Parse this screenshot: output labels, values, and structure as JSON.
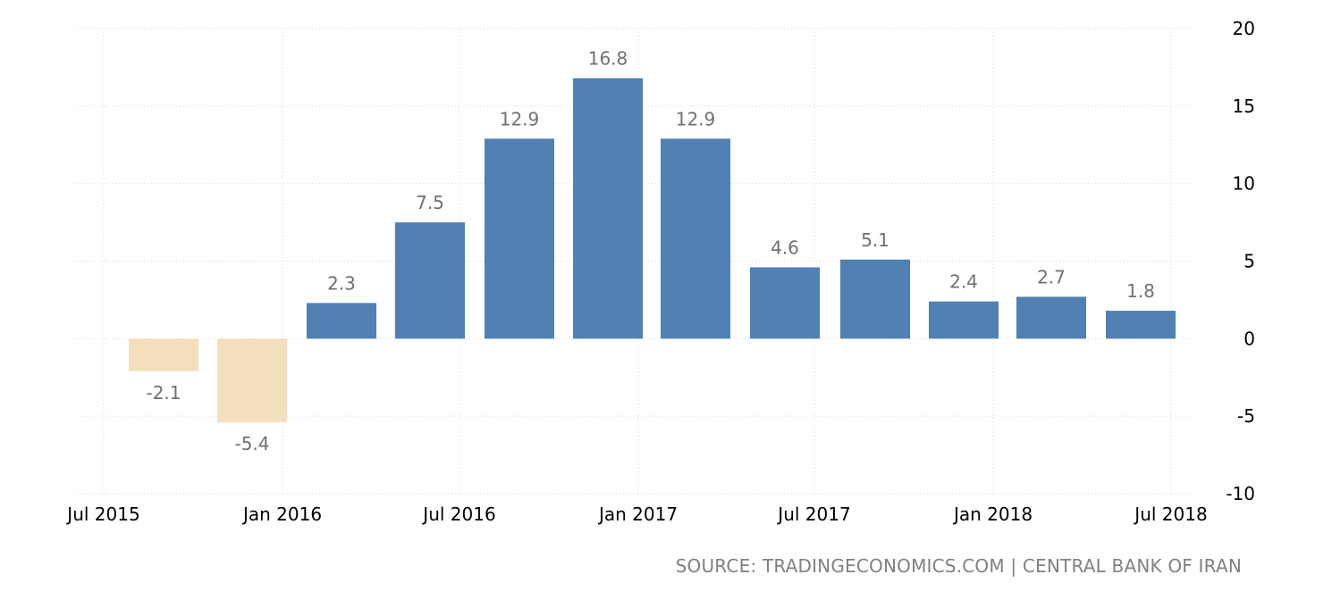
{
  "chart_data": {
    "type": "bar",
    "categories": [
      "Sep 2015",
      "Dec 2015",
      "Mar 2016",
      "Jun 2016",
      "Sep 2016",
      "Dec 2016",
      "Mar 2017",
      "Jun 2017",
      "Sep 2017",
      "Dec 2017",
      "Mar 2018",
      "Jun 2018"
    ],
    "values": [
      -2.1,
      -5.4,
      2.3,
      7.5,
      12.9,
      16.8,
      12.9,
      4.6,
      5.1,
      2.4,
      2.7,
      1.8
    ],
    "value_labels": [
      "-2.1",
      "-5.4",
      "2.3",
      "7.5",
      "12.9",
      "16.8",
      "12.9",
      "4.6",
      "5.1",
      "2.4",
      "2.7",
      "1.8"
    ],
    "x_ticks": [
      "Jul 2015",
      "Jan 2016",
      "Jul 2016",
      "Jan 2017",
      "Jul 2017",
      "Jan 2018",
      "Jul 2018"
    ],
    "y_ticks": [
      "20",
      "15",
      "10",
      "5",
      "0",
      "-5",
      "-10"
    ],
    "ylim": [
      -10,
      20
    ],
    "y_axis_side": "right",
    "grid": true,
    "colors": {
      "positive": "#5180b2",
      "negative": "#f4dfbd",
      "label": "#707070",
      "grid": "#d9d9d9"
    }
  },
  "source_text": "SOURCE: TRADINGECONOMICS.COM | CENTRAL BANK OF IRAN"
}
